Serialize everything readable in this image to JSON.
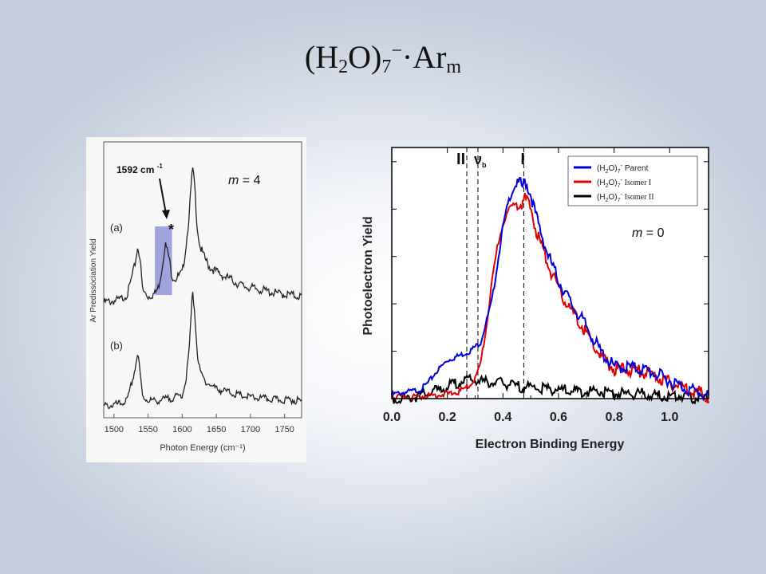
{
  "slide": {
    "title_main": "(H",
    "title_sub1": "2",
    "title_mid": "O)",
    "title_sub2": "7",
    "title_sup": "−",
    "title_end": "·Ar",
    "title_sub3": "m"
  },
  "chart_data": [
    {
      "type": "line",
      "panel": "left",
      "xlabel": "Photon Energy (cm⁻¹)",
      "ylabel": "Ar Predissociation Yield",
      "xlim": [
        1485,
        1775
      ],
      "x_ticks": [
        "1500",
        "1550",
        "1600",
        "1650",
        "1700",
        "1750"
      ],
      "x_tick_values": [
        1500,
        1550,
        1600,
        1650,
        1700,
        1750
      ],
      "grid": false,
      "annotations": {
        "peak_label": "1592 cm",
        "peak_label_sup": "-1",
        "star": "*",
        "trace_a": "(a)",
        "trace_b": "(b)",
        "m_label_var": "m",
        "m_label_val": "= 4"
      },
      "highlight_range": [
        1560,
        1585
      ],
      "series": [
        {
          "label": "(a)",
          "x": [
            1485,
            1500,
            1510,
            1520,
            1530,
            1535,
            1538,
            1542,
            1550,
            1560,
            1565,
            1570,
            1575,
            1580,
            1585,
            1590,
            1600,
            1605,
            1610,
            1615,
            1618,
            1622,
            1626,
            1632,
            1640,
            1650,
            1660,
            1670,
            1680,
            1690,
            1700,
            1720,
            1740,
            1760,
            1775
          ],
          "y": [
            0.04,
            0.05,
            0.06,
            0.1,
            0.28,
            0.42,
            0.35,
            0.12,
            0.08,
            0.1,
            0.14,
            0.26,
            0.44,
            0.36,
            0.22,
            0.2,
            0.24,
            0.4,
            0.62,
            0.95,
            0.85,
            0.55,
            0.42,
            0.35,
            0.28,
            0.25,
            0.22,
            0.2,
            0.17,
            0.15,
            0.14,
            0.12,
            0.1,
            0.09,
            0.08
          ]
        },
        {
          "label": "(b)",
          "x": [
            1485,
            1500,
            1510,
            1520,
            1530,
            1535,
            1538,
            1542,
            1550,
            1560,
            1570,
            1580,
            1590,
            1600,
            1605,
            1610,
            1615,
            1618,
            1622,
            1626,
            1632,
            1640,
            1650,
            1660,
            1670,
            1680,
            1690,
            1700,
            1720,
            1740,
            1760,
            1775
          ],
          "y": [
            0.03,
            0.04,
            0.05,
            0.08,
            0.3,
            0.45,
            0.3,
            0.1,
            0.08,
            0.07,
            0.08,
            0.09,
            0.1,
            0.12,
            0.22,
            0.45,
            0.92,
            0.8,
            0.45,
            0.3,
            0.24,
            0.2,
            0.17,
            0.15,
            0.14,
            0.12,
            0.11,
            0.1,
            0.09,
            0.08,
            0.08,
            0.07
          ]
        }
      ]
    },
    {
      "type": "line",
      "panel": "right",
      "xlabel": "Electron Binding Energy",
      "ylabel": "Photoelectron Yield",
      "xlim": [
        0.0,
        1.14
      ],
      "ylim": [
        0,
        1.0
      ],
      "x_ticks": [
        "0.0",
        "0.2",
        "0.4",
        "0.6",
        "0.8",
        "1.0"
      ],
      "x_tick_values": [
        0.0,
        0.2,
        0.4,
        0.6,
        0.8,
        1.0
      ],
      "grid": false,
      "legend_position": "top-right",
      "markers": [
        {
          "label": "II",
          "x": 0.27
        },
        {
          "label": "ν",
          "sub": "b",
          "x": 0.31
        },
        {
          "label": "I",
          "x": 0.475
        }
      ],
      "annotations": {
        "m_label_var": "m",
        "m_label_val": "= 0"
      },
      "series": [
        {
          "name": "Parent",
          "legend_prefix": "(H",
          "legend_sub1": "2",
          "legend_mid": "O)",
          "legend_sub2": "7",
          "legend_sup": "-",
          "color": "#0000d8",
          "x": [
            0.0,
            0.05,
            0.1,
            0.13,
            0.16,
            0.2,
            0.24,
            0.28,
            0.32,
            0.36,
            0.38,
            0.4,
            0.42,
            0.44,
            0.46,
            0.47,
            0.48,
            0.5,
            0.52,
            0.56,
            0.6,
            0.65,
            0.7,
            0.75,
            0.8,
            0.85,
            0.9,
            0.95,
            1.0,
            1.05,
            1.1,
            1.14
          ],
          "y": [
            0.01,
            0.02,
            0.03,
            0.06,
            0.11,
            0.16,
            0.18,
            0.2,
            0.24,
            0.42,
            0.58,
            0.75,
            0.86,
            0.92,
            0.95,
            0.93,
            0.96,
            0.9,
            0.8,
            0.64,
            0.52,
            0.41,
            0.32,
            0.21,
            0.14,
            0.14,
            0.13,
            0.11,
            0.08,
            0.05,
            0.03,
            0.01
          ]
        },
        {
          "name": "Isomer I",
          "legend_prefix": "(H",
          "legend_sub1": "2",
          "legend_mid": "O)",
          "legend_sub2": "7",
          "legend_sup": "-",
          "color": "#e00000",
          "x": [
            0.0,
            0.1,
            0.18,
            0.24,
            0.28,
            0.3,
            0.32,
            0.34,
            0.36,
            0.38,
            0.4,
            0.42,
            0.44,
            0.46,
            0.47,
            0.48,
            0.5,
            0.52,
            0.56,
            0.6,
            0.65,
            0.7,
            0.75,
            0.8,
            0.85,
            0.9,
            0.95,
            1.0,
            1.05,
            1.1,
            1.14
          ],
          "y": [
            0.0,
            0.0,
            0.01,
            0.02,
            0.05,
            0.08,
            0.15,
            0.3,
            0.5,
            0.66,
            0.76,
            0.82,
            0.85,
            0.87,
            0.86,
            0.88,
            0.84,
            0.74,
            0.6,
            0.48,
            0.38,
            0.29,
            0.19,
            0.13,
            0.13,
            0.12,
            0.1,
            0.07,
            0.05,
            0.03,
            0.01
          ]
        },
        {
          "name": "Isomer II",
          "legend_prefix": "(H",
          "legend_sub1": "2",
          "legend_mid": "O)",
          "legend_sub2": "7",
          "legend_sup": "-",
          "color": "#000000",
          "x": [
            0.0,
            0.05,
            0.1,
            0.15,
            0.2,
            0.24,
            0.27,
            0.3,
            0.34,
            0.38,
            0.42,
            0.46,
            0.5,
            0.55,
            0.6,
            0.65,
            0.7,
            0.75,
            0.8,
            0.85,
            0.9,
            0.95,
            1.0,
            1.05,
            1.1,
            1.14
          ],
          "y": [
            0.0,
            0.0,
            0.01,
            0.03,
            0.05,
            0.07,
            0.08,
            0.08,
            0.07,
            0.07,
            0.06,
            0.05,
            0.05,
            0.04,
            0.04,
            0.03,
            0.03,
            0.03,
            0.02,
            0.02,
            0.02,
            0.01,
            0.01,
            0.01,
            0.0,
            0.0
          ]
        }
      ]
    }
  ]
}
